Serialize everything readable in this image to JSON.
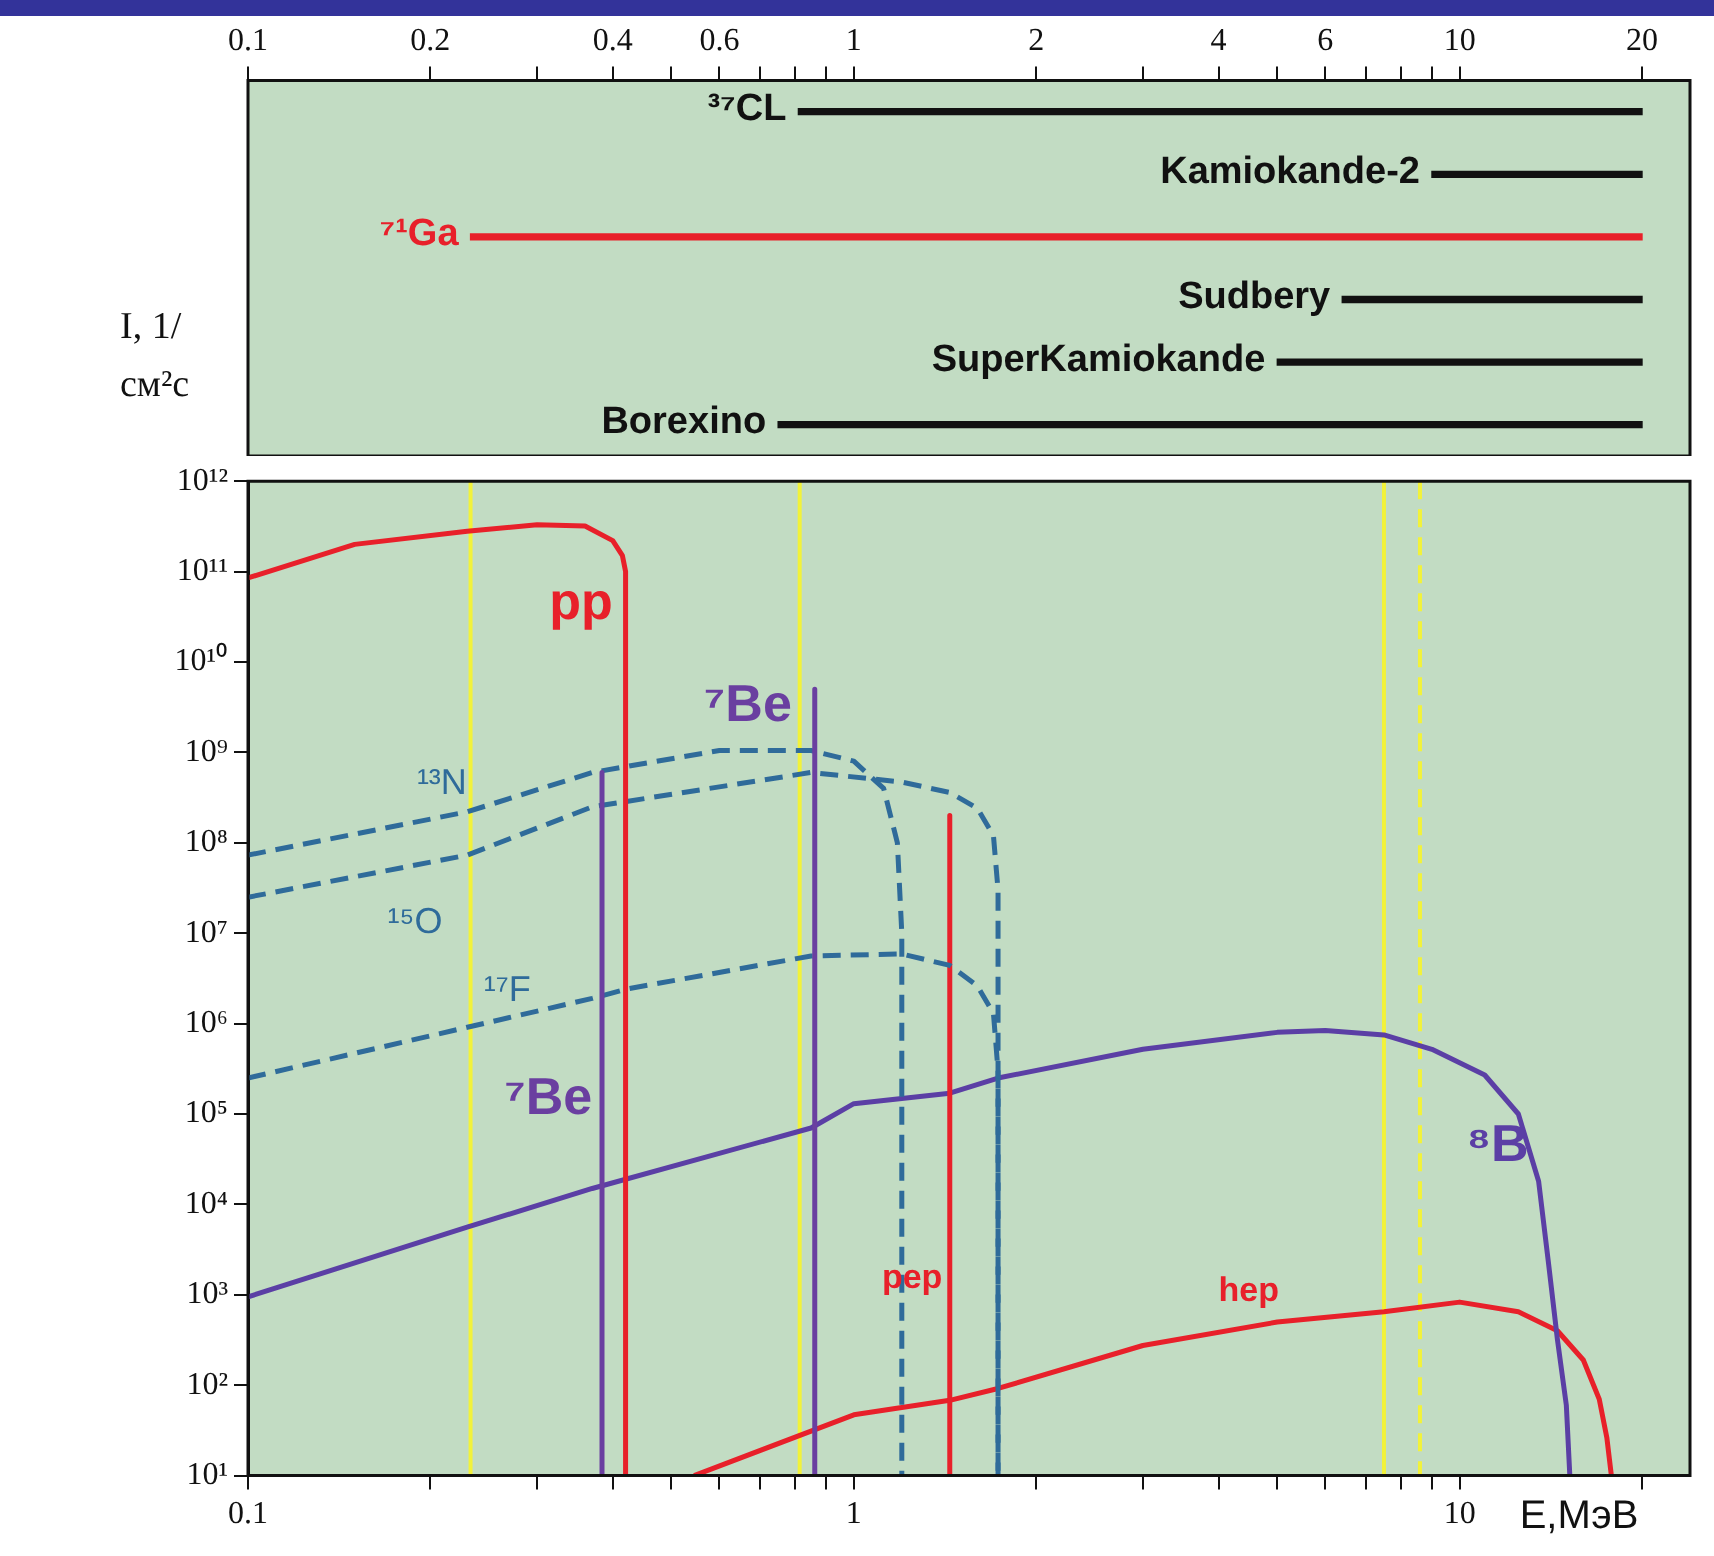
{
  "chart_data": [
    {
      "type": "bar",
      "orientation": "horizontal",
      "log": "x",
      "tick_labels": "x",
      "categories": [
        "³⁷CL",
        "Kamiokande-2",
        "⁷¹Ga",
        "Sudbery",
        "SuperKamiokande",
        "Borexino"
      ],
      "base": [
        0.81,
        9,
        0.233,
        6.4,
        5,
        0.75
      ],
      "colors": [
        "#111111",
        "#111111",
        "#e8202a",
        "#111111",
        "#111111",
        "#111111"
      ],
      "values": [
        19.19,
        11,
        19.767,
        13.6,
        15,
        19.25
      ],
      "xlim": [
        0.1,
        24
      ],
      "xticks": [
        0.1,
        0.2,
        {
          "value": 0.3,
          "label": null
        },
        0.4,
        {
          "value": 0.5,
          "label": null
        },
        0.6,
        {
          "value": 0.7,
          "label": null
        },
        {
          "value": 0.8,
          "label": null
        },
        {
          "value": 0.9,
          "label": null
        },
        1,
        2,
        {
          "value": 3,
          "label": null
        },
        4,
        {
          "value": 5,
          "label": null
        },
        6,
        {
          "value": 7,
          "label": null
        },
        {
          "value": 8,
          "label": null
        },
        {
          "value": 9,
          "label": null
        },
        10,
        20
      ]
    },
    {
      "type": "line",
      "log": "xy",
      "marker": "none",
      "ylabel": "I, 1/см²с",
      "xlabel": "E,МэВ",
      "xlim": [
        0.1,
        24
      ],
      "ylim": [
        10,
        1000000000000
      ],
      "xticks": [
        0.1,
        {
          "value": 0.2,
          "label": null
        },
        {
          "value": 0.3,
          "label": null
        },
        {
          "value": 0.4,
          "label": null
        },
        {
          "value": 0.5,
          "label": null
        },
        {
          "value": 0.6,
          "label": null
        },
        {
          "value": 0.7,
          "label": null
        },
        {
          "value": 0.8,
          "label": null
        },
        {
          "value": 0.9,
          "label": null
        },
        1,
        {
          "value": 2,
          "label": null
        },
        {
          "value": 3,
          "label": null
        },
        {
          "value": 4,
          "label": null
        },
        {
          "value": 5,
          "label": null
        },
        {
          "value": 6,
          "label": null
        },
        {
          "value": 7,
          "label": null
        },
        {
          "value": 8,
          "label": null
        },
        {
          "value": 9,
          "label": null
        },
        10,
        {
          "value": 20,
          "label": null
        }
      ],
      "yticks": [
        {
          "value": 10,
          "label": "10¹"
        },
        {
          "value": 100,
          "label": "10²"
        },
        {
          "value": 1000,
          "label": "10³"
        },
        {
          "value": 10000,
          "label": "10⁴"
        },
        {
          "value": 100000,
          "label": "10⁵"
        },
        {
          "value": 1000000,
          "label": "10⁶"
        },
        {
          "value": 10000000,
          "label": "10⁷"
        },
        {
          "value": 100000000,
          "label": "10⁸"
        },
        {
          "value": 1000000000,
          "label": "10⁹"
        },
        {
          "value": 10000000000,
          "label": "10¹⁰"
        },
        {
          "value": 100000000000,
          "label": "10¹¹"
        },
        {
          "value": 1000000000000,
          "label": "10¹²"
        }
      ],
      "ref_lines": [
        {
          "axis": "x",
          "value": 0.233,
          "color": "#f2f23a"
        },
        {
          "axis": "x",
          "value": 0.814,
          "color": "#f2f23a"
        },
        {
          "axis": "x",
          "value": 7.5,
          "color": "#f2f23a"
        },
        {
          "axis": "x",
          "value": 8.6,
          "color": "#f2f23a",
          "line_style": "dashed"
        }
      ],
      "series": [
        {
          "name": "pp",
          "color": "#e8202a",
          "x": [
            0.1,
            0.15,
            0.23,
            0.3,
            0.36,
            0.4,
            0.415,
            0.42,
            0.42
          ],
          "values": [
            85000000000,
            200000000000,
            280000000000,
            330000000000,
            320000000000,
            220000000000,
            150000000000,
            100000000000,
            10
          ]
        },
        {
          "name": "⁷Be",
          "color": "#6a3fa0",
          "x": [
            0.384,
            0.384
          ],
          "values": [
            600000000,
            10
          ]
        },
        {
          "name": "⁷Be",
          "color": "#6a3fa0",
          "x": [
            0.862,
            0.862
          ],
          "values": [
            5000000000,
            10
          ]
        },
        {
          "name": "¹³N",
          "color": "#2f6b9a",
          "line_style": "dashed",
          "x": [
            0.1,
            0.23,
            0.37,
            0.6,
            0.85,
            1,
            1.12,
            1.18,
            1.2,
            1.2
          ],
          "values": [
            73000000,
            220000000,
            600000000,
            1050000000,
            1050000000,
            800000000,
            400000000,
            100000000,
            10000000,
            10
          ]
        },
        {
          "name": "¹⁵O",
          "color": "#2f6b9a",
          "line_style": "dashed",
          "x": [
            0.1,
            0.23,
            0.37,
            0.85,
            1.2,
            1.44,
            1.6,
            1.7,
            1.73,
            1.73
          ],
          "values": [
            25000000,
            73000000,
            250000000,
            600000000,
            470000000,
            360000000,
            240000000,
            120000000,
            30000000,
            10
          ]
        },
        {
          "name": "¹⁷F",
          "color": "#2f6b9a",
          "line_style": "dashed",
          "x": [
            0.1,
            0.37,
            0.42,
            0.85,
            1.2,
            1.44,
            1.6,
            1.7,
            1.73,
            1.73
          ],
          "values": [
            250000,
            1900000,
            2400000,
            5600000,
            5900000,
            4400000,
            2600000,
            1300000,
            300000,
            10
          ]
        },
        {
          "name": "pep",
          "color": "#e8202a",
          "x": [
            1.44,
            1.44
          ],
          "values": [
            200000000,
            10
          ]
        },
        {
          "name": "⁸B",
          "color": "#5b3fa5",
          "x": [
            0.1,
            0.23,
            0.37,
            0.85,
            1,
            1.44,
            1.73,
            3,
            5,
            6,
            7.5,
            9,
            11,
            12.5,
            13.5,
            14,
            14.5,
            15,
            15.2
          ],
          "values": [
            950,
            5600,
            15000,
            70000,
            130000,
            170000,
            250000,
            520000,
            800000,
            840000,
            750000,
            520000,
            270000,
            100000,
            18000,
            2400,
            320,
            60,
            10
          ]
        },
        {
          "name": "hep",
          "color": "#e8202a",
          "x": [
            0.545,
            1,
            1.44,
            1.73,
            3,
            5,
            7.5,
            10,
            12.5,
            14.5,
            16,
            17,
            17.5,
            17.8
          ],
          "values": [
            10,
            47,
            68,
            92,
            275,
            500,
            650,
            830,
            650,
            400,
            190,
            70,
            26,
            10
          ]
        }
      ]
    }
  ]
}
